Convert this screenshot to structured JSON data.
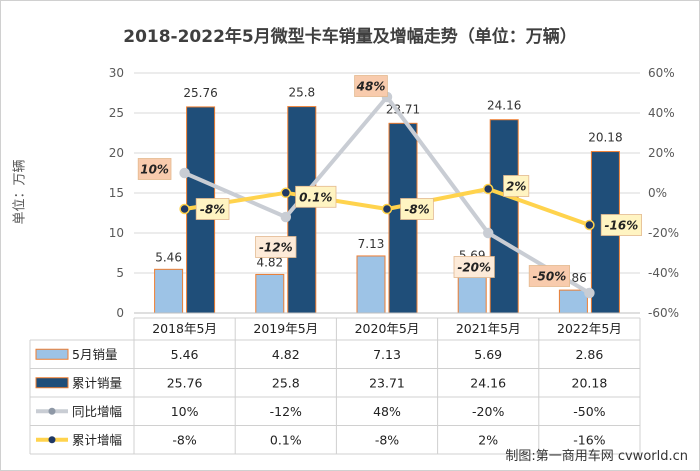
{
  "title": "2018-2022年5月微型卡车销量及增幅走势（单位：万辆）",
  "ylabel": "单位：万辆",
  "watermark": "制图:第一商用车网 cvworld.cn",
  "colors": {
    "monthly_bar": "#9dc3e6",
    "cumulative_bar": "#1f4e79",
    "bar_outline": "#ed7d31",
    "yoy_line": "#c9cdd4",
    "cum_growth_line": "#ffd34d",
    "callout_fill_pos": "#f8cbad",
    "callout_fill_neg": "#fdebd9",
    "callout_fill_yellow": "#fff4c2",
    "gridline": "#d9d9d9"
  },
  "chart_data": {
    "type": "bar",
    "categories": [
      "2018年5月",
      "2019年5月",
      "2020年5月",
      "2021年5月",
      "2022年5月"
    ],
    "series": [
      {
        "name": "5月销量",
        "type": "bar",
        "axis": "left",
        "values": [
          5.46,
          4.82,
          7.13,
          5.69,
          2.86
        ],
        "labels": [
          "5.46",
          "4.82",
          "7.13",
          "5.69",
          "2.86"
        ]
      },
      {
        "name": "累计销量",
        "type": "bar",
        "axis": "left",
        "values": [
          25.76,
          25.8,
          23.71,
          24.16,
          20.18
        ],
        "labels": [
          "25.76",
          "25.8",
          "23.71",
          "24.16",
          "20.18"
        ]
      },
      {
        "name": "同比增幅",
        "type": "line",
        "axis": "right",
        "values": [
          10,
          -12,
          48,
          -20,
          -50
        ],
        "labels": [
          "10%",
          "-12%",
          "48%",
          "-20%",
          "-50%"
        ]
      },
      {
        "name": "累计增幅",
        "type": "line",
        "axis": "right",
        "values": [
          -8,
          0.1,
          -8,
          2,
          -16
        ],
        "labels": [
          "-8%",
          "0.1%",
          "-8%",
          "2%",
          "-16%"
        ]
      }
    ],
    "y_left": {
      "min": 0,
      "max": 30,
      "ticks": [
        "0",
        "5",
        "10",
        "15",
        "20",
        "25",
        "30"
      ]
    },
    "y_right": {
      "min": -60,
      "max": 60,
      "ticks": [
        "-60%",
        "-40%",
        "-20%",
        "0%",
        "20%",
        "40%",
        "60%"
      ]
    },
    "grid": true,
    "data_table": {
      "rows": [
        {
          "legend": "5月销量",
          "cells": [
            "5.46",
            "4.82",
            "7.13",
            "5.69",
            "2.86"
          ]
        },
        {
          "legend": "累计销量",
          "cells": [
            "25.76",
            "25.8",
            "23.71",
            "24.16",
            "20.18"
          ]
        },
        {
          "legend": "同比增幅",
          "cells": [
            "10%",
            "-12%",
            "48%",
            "-20%",
            "-50%"
          ]
        },
        {
          "legend": "累计增幅",
          "cells": [
            "-8%",
            "0.1%",
            "-8%",
            "2%",
            "-16%"
          ]
        }
      ]
    }
  }
}
